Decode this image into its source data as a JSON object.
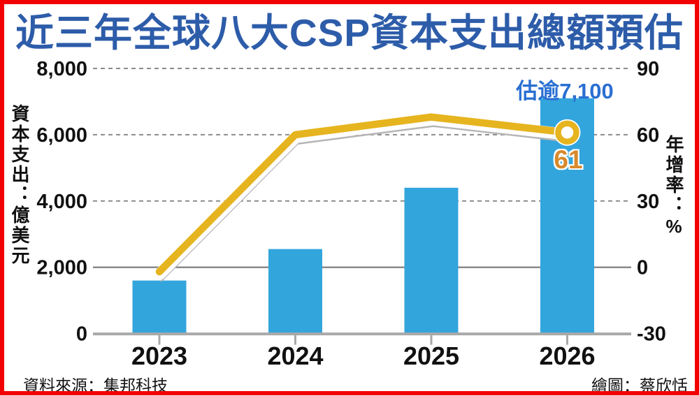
{
  "title": "近三年全球八大CSP資本支出總額預估",
  "footer": {
    "source": "資料來源：集邦科技",
    "credit": "繪圖：蔡欣恬"
  },
  "colors": {
    "border": "#f20000",
    "title": "#2d5ca9",
    "bar": "#33a5dd",
    "line": "#e6b41e",
    "marker_hole": "#ffffff",
    "annotation": "#2a6fd2",
    "point_label": "#d8892b",
    "gridline": "#8c8c8c",
    "axis": "#a9a9a9"
  },
  "chart_data": {
    "type": "combo_bar_line",
    "categories": [
      "2023",
      "2024",
      "2025",
      "2026"
    ],
    "series": [
      {
        "name": "資本支出（億美元）",
        "type": "bar",
        "axis": "left",
        "values": [
          1600,
          2550,
          4400,
          7100
        ]
      },
      {
        "name": "年增率（%）",
        "type": "line",
        "axis": "right",
        "values": [
          -2,
          60,
          68,
          61
        ]
      }
    ],
    "left_axis": {
      "title": "資本支出：億美元",
      "range": [
        0,
        8000
      ],
      "tick_values": [
        8000,
        6000,
        4000,
        2000,
        0
      ],
      "tick_labels": [
        "8,000",
        "6,000",
        "4,000",
        "2,000",
        "0"
      ]
    },
    "right_axis": {
      "title": "年增率：%",
      "range": [
        -30,
        90
      ],
      "tick_values": [
        90,
        60,
        30,
        0,
        -30
      ],
      "tick_labels": [
        "90",
        "60",
        "30",
        "0",
        "-30"
      ]
    },
    "annotation": "估逾7,100",
    "point_label": "61",
    "grid": "dashed horizontal, solid line at right-axis 0",
    "legend": "none"
  }
}
